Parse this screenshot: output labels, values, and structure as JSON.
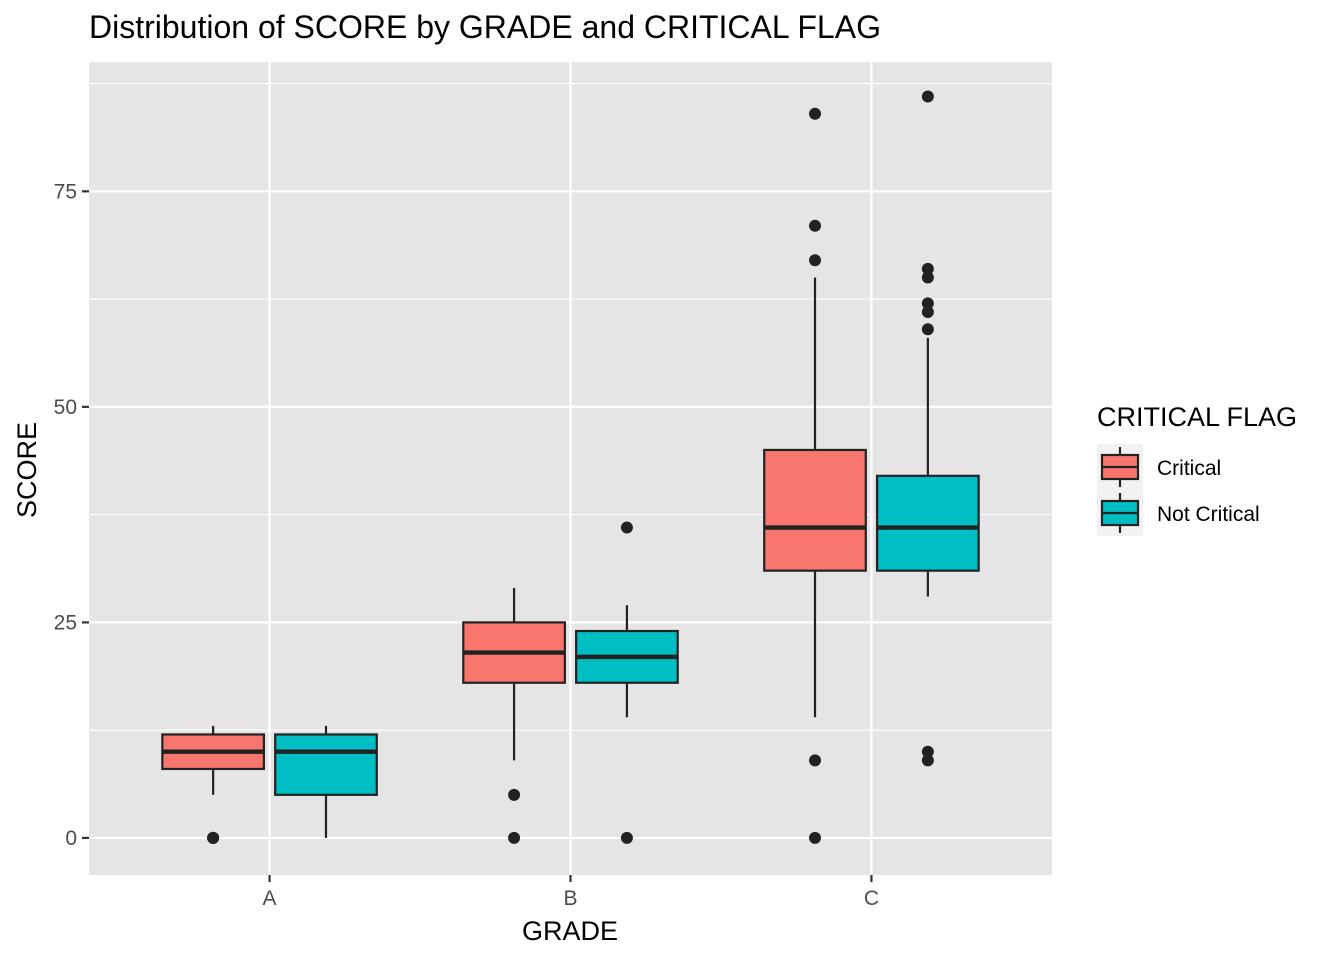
{
  "chart_data": {
    "type": "boxplot",
    "title": "Distribution of SCORE by GRADE and CRITICAL FLAG",
    "xlabel": "GRADE",
    "ylabel": "SCORE",
    "categories": [
      "A",
      "B",
      "C"
    ],
    "y_ticks": [
      0,
      25,
      50,
      75
    ],
    "ylim": [
      -4.3,
      90
    ],
    "grid": true,
    "legend": {
      "title": "CRITICAL FLAG",
      "position": "right",
      "entries": [
        {
          "label": "Critical",
          "color": "#F8766D"
        },
        {
          "label": "Not Critical",
          "color": "#00BFC4"
        }
      ]
    },
    "series": [
      {
        "name": "Critical",
        "color": "#F8766D",
        "boxes": [
          {
            "category": "A",
            "whisker_low": 5,
            "q1": 8,
            "median": 10,
            "q3": 12,
            "whisker_high": 13,
            "outliers": [
              0,
              0,
              0
            ]
          },
          {
            "category": "B",
            "whisker_low": 9,
            "q1": 18,
            "median": 21.5,
            "q3": 25,
            "whisker_high": 29,
            "outliers": [
              0,
              5
            ]
          },
          {
            "category": "C",
            "whisker_low": 14,
            "q1": 31,
            "median": 36,
            "q3": 45,
            "whisker_high": 65,
            "outliers": [
              0,
              9,
              67,
              71,
              84
            ]
          }
        ]
      },
      {
        "name": "Not Critical",
        "color": "#00BFC4",
        "boxes": [
          {
            "category": "A",
            "whisker_low": 0,
            "q1": 5,
            "median": 10,
            "q3": 12,
            "whisker_high": 13,
            "outliers": []
          },
          {
            "category": "B",
            "whisker_low": 14,
            "q1": 18,
            "median": 21,
            "q3": 24,
            "whisker_high": 27,
            "outliers": [
              0,
              36
            ]
          },
          {
            "category": "C",
            "whisker_low": 28,
            "q1": 31,
            "median": 36,
            "q3": 42,
            "whisker_high": 58,
            "outliers": [
              9,
              10,
              59,
              61,
              62,
              65,
              66,
              86
            ]
          }
        ]
      }
    ]
  },
  "colors": {
    "panel_background": "#E5E5E5",
    "grid": "#FFFFFF",
    "box_outline": "#222222",
    "tick_text": "#4d4d4d"
  }
}
